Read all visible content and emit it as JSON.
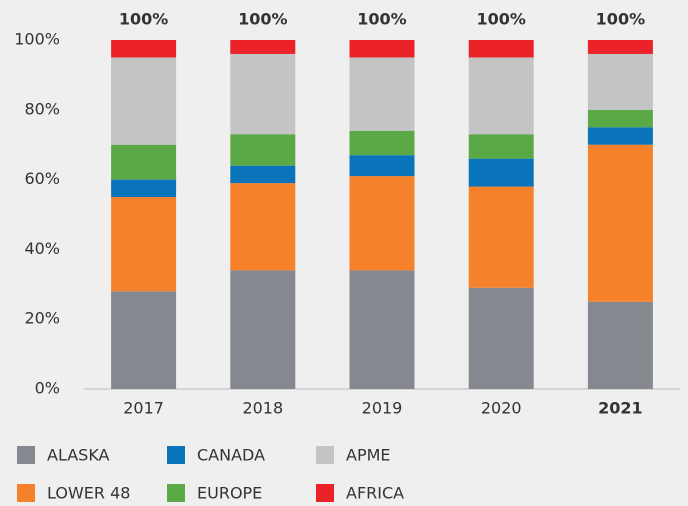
{
  "chart_data": {
    "type": "stacked_bar",
    "categories": [
      "2017",
      "2018",
      "2019",
      "2020",
      "2021"
    ],
    "highlight_index": 4,
    "series": [
      {
        "name": "ALASKA",
        "color": "#85888f",
        "values": [
          28,
          34,
          34,
          29,
          25
        ]
      },
      {
        "name": "LOWER 48",
        "color": "#f5812a",
        "values": [
          27,
          25,
          27,
          29,
          45
        ]
      },
      {
        "name": "CANADA",
        "color": "#0a74bb",
        "values": [
          5,
          5,
          6,
          8,
          5
        ]
      },
      {
        "name": "EUROPE",
        "color": "#5ba946",
        "values": [
          10,
          9,
          7,
          7,
          5
        ]
      },
      {
        "name": "APME",
        "color": "#c4c4c5",
        "values": [
          25,
          23,
          21,
          22,
          16
        ]
      },
      {
        "name": "AFRICA",
        "color": "#ec2229",
        "values": [
          5,
          4,
          5,
          5,
          4
        ]
      }
    ],
    "totals": [
      100,
      100,
      100,
      100,
      100
    ],
    "total_labels": [
      "100%",
      "100%",
      "100%",
      "100%",
      "100%"
    ],
    "ylim": [
      0,
      100
    ],
    "yticks": [
      {
        "value": 0,
        "label": "0%"
      },
      {
        "value": 20,
        "label": "20%"
      },
      {
        "value": 40,
        "label": "40%"
      },
      {
        "value": 60,
        "label": "60%"
      },
      {
        "value": 80,
        "label": "80%"
      },
      {
        "value": 100,
        "label": "100%"
      }
    ]
  }
}
